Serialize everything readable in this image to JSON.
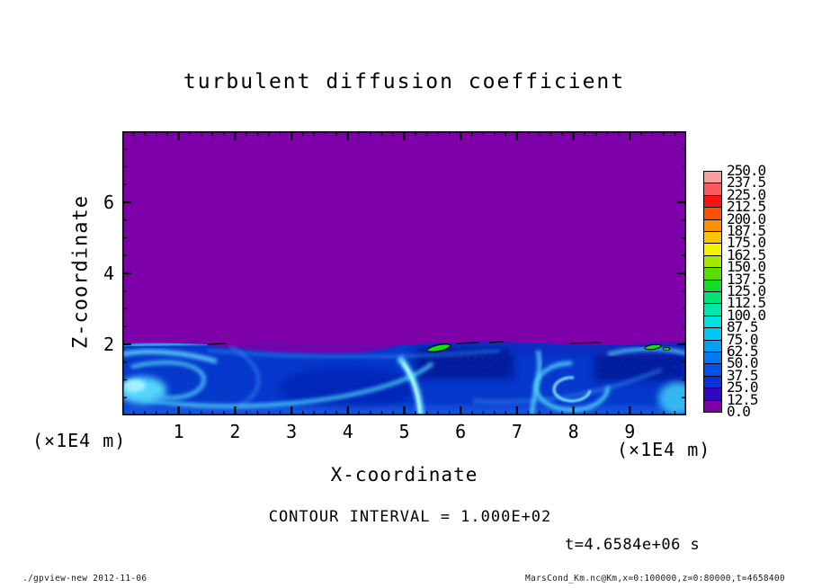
{
  "title": "turbulent diffusion coefficient",
  "xlabel": "X-coordinate",
  "ylabel": "Z-coordinate",
  "x_unit_label": "(×1E4 m)",
  "y_unit_label": "(×1E4 m)",
  "contour_note": "CONTOUR INTERVAL = 1.000E+02",
  "time_label": "t=4.6584e+06 s",
  "footer_left": "./gpview-new  2012-11-06",
  "footer_right": "MarsCond_Km.nc@Km,x=0:100000,z=0:80000,t=4658400",
  "chart_data": {
    "type": "heatmap",
    "title": "turbulent diffusion coefficient",
    "xlabel": "X-coordinate (×1E4 m)",
    "ylabel": "Z-coordinate (×1E4 m)",
    "xlim": [
      0,
      10
    ],
    "ylim": [
      0,
      8
    ],
    "x_ticks": [
      1,
      2,
      3,
      4,
      5,
      6,
      7,
      8,
      9
    ],
    "y_ticks": [
      2,
      4,
      6
    ],
    "x_minor_step": 0.2,
    "y_minor_step": 0.5,
    "grid": false,
    "contour_interval": 100.0,
    "time_seconds": 4658400,
    "data_selection": "x=0:100000, z=0:80000, t=4658400",
    "colorbar": {
      "position": "right",
      "levels_top_to_bottom": [
        "250.0",
        "237.5",
        "225.0",
        "212.5",
        "200.0",
        "187.5",
        "175.0",
        "162.5",
        "150.0",
        "137.5",
        "125.0",
        "112.5",
        "100.0",
        "87.5",
        "75.0",
        "62.5",
        "50.0",
        "37.5",
        "25.0",
        "12.5",
        "0.0"
      ],
      "colors_top_to_bottom": [
        "#f5a0a0",
        "#fa5a5a",
        "#f81212",
        "#ff5000",
        "#ff9000",
        "#ffc400",
        "#f4f400",
        "#a8e800",
        "#55e000",
        "#12dc28",
        "#00e377",
        "#00e6ae",
        "#00e3dc",
        "#00c8f5",
        "#00a2f8",
        "#0078f5",
        "#0053ea",
        "#0b2fd8",
        "#3208be",
        "#7d00a8"
      ]
    },
    "field_summary": "Diffusion coefficient is ~0 (purple, 0-12.5 band) everywhere above z≈2×1E4 m. Below z≈2×1E4 m lies a turbulent mixed layer of swirling values ~12.5-100 (dark blue to cyan filaments and vortices), with darker low patches near x≈5-6 and x≈7-8.5, bright cyan plumes near x≈0.5, 5.2 and 7.5-8.5, and small maxima exceeding 100 (green blobs ringed by black 100-contour) at the layer top near x≈5.6 and x≈8.3.",
    "accent_colors": {
      "background_field": "#7d00a8",
      "mixed_layer_base": "#0638cc",
      "contour_line": "#000000"
    }
  }
}
